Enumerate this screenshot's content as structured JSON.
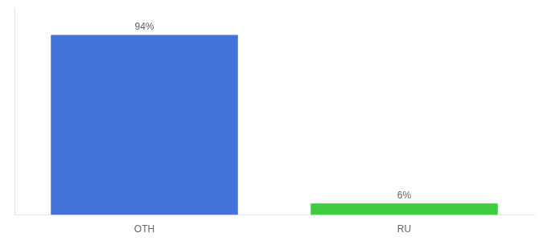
{
  "chart_data": {
    "type": "bar",
    "categories": [
      "OTH",
      "RU"
    ],
    "values": [
      94,
      6
    ],
    "value_labels": [
      "94%",
      "6%"
    ],
    "colors": [
      "#4472db",
      "#3dcc3d"
    ],
    "ylim": [
      0,
      108
    ],
    "data_labels": true,
    "tick_labels": "x",
    "grid": false
  }
}
